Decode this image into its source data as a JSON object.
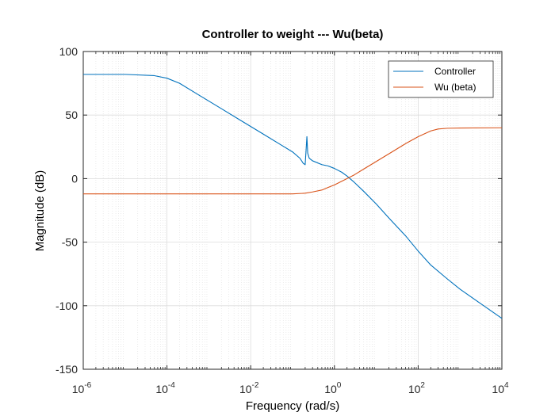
{
  "chart_data": {
    "type": "line",
    "title": "Controller to weight --- Wu(beta)",
    "xlabel": "Frequency  (rad/s)",
    "ylabel": "Magnitude (dB)",
    "xscale": "log",
    "xlim": [
      1e-06,
      10000
    ],
    "ylim": [
      -150,
      100
    ],
    "xticks": [
      {
        "base": "10",
        "exp": "-6",
        "value": 1e-06
      },
      {
        "base": "10",
        "exp": "-4",
        "value": 0.0001
      },
      {
        "base": "10",
        "exp": "-2",
        "value": 0.01
      },
      {
        "base": "10",
        "exp": "0",
        "value": 1
      },
      {
        "base": "10",
        "exp": "2",
        "value": 100
      },
      {
        "base": "10",
        "exp": "4",
        "value": 10000
      }
    ],
    "yticks": [
      "-150",
      "-100",
      "-50",
      "0",
      "50",
      "100"
    ],
    "grid": true,
    "minor_grid": true,
    "legend_position": "top-right",
    "series": [
      {
        "name": "Controller",
        "color": "#0072BD",
        "x": [
          1e-06,
          1e-05,
          5e-05,
          0.0001,
          0.0002,
          0.0005,
          0.001,
          0.002,
          0.005,
          0.01,
          0.02,
          0.05,
          0.1,
          0.15,
          0.18,
          0.2,
          0.21,
          0.22,
          0.23,
          0.25,
          0.3,
          0.5,
          0.7,
          1,
          1.5,
          2,
          3,
          5,
          10,
          20,
          50,
          100,
          200,
          500,
          1000,
          3000,
          10000
        ],
        "y": [
          82,
          82,
          81,
          79,
          75,
          67,
          61,
          55,
          47,
          41,
          35,
          27,
          21,
          16,
          12,
          11,
          22,
          33,
          20,
          16,
          14,
          11,
          10,
          8,
          5,
          2,
          -3,
          -10,
          -20,
          -31,
          -45,
          -57,
          -68,
          -79,
          -87,
          -98,
          -110
        ]
      },
      {
        "name": "Wu (beta)",
        "color": "#D95319",
        "x": [
          1e-06,
          0.001,
          0.1,
          0.2,
          0.3,
          0.5,
          0.7,
          1,
          2,
          3,
          5,
          10,
          20,
          50,
          100,
          200,
          300,
          500,
          1000,
          10000
        ],
        "y": [
          -12,
          -12,
          -12,
          -11.5,
          -10.5,
          -9,
          -7,
          -5,
          0,
          3,
          7.5,
          13.5,
          19.5,
          27.5,
          33,
          37.5,
          39,
          39.6,
          39.8,
          40
        ]
      }
    ]
  }
}
